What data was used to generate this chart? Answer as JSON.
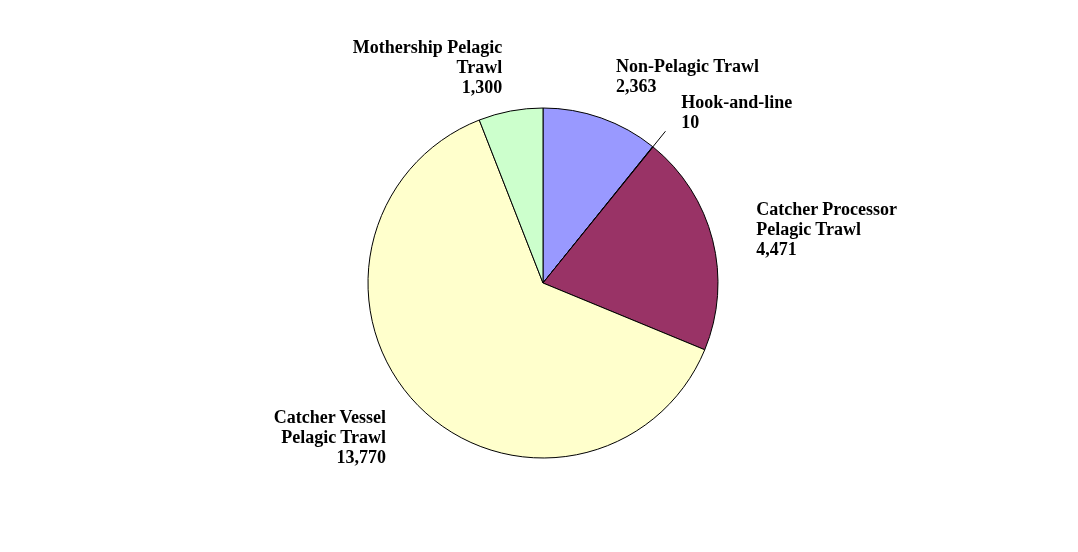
{
  "chart_data": {
    "type": "pie",
    "categories": [
      "Non-Pelagic Trawl",
      "Hook-and-line",
      "Catcher Processor Pelagic Trawl",
      "Catcher Vessel Pelagic Trawl",
      "Mothership Pelagic Trawl"
    ],
    "values": [
      2363,
      10,
      4471,
      13770,
      1300
    ],
    "colors": [
      "#9999ff",
      "#333399",
      "#993366",
      "#ffffcc",
      "#ccffcc"
    ],
    "value_labels": [
      "2,363",
      "10",
      "4,471",
      "13,770",
      "1,300"
    ],
    "legend": false
  }
}
